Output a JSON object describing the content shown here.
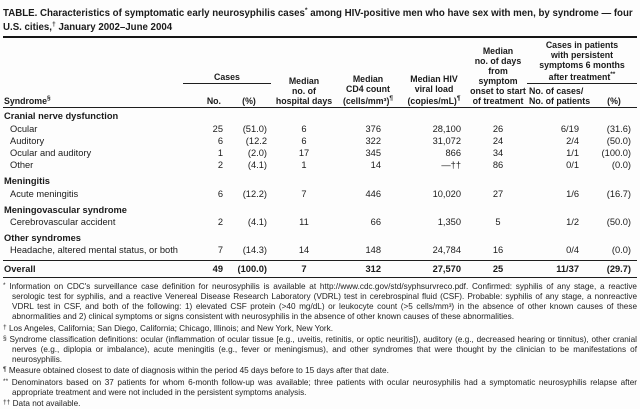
{
  "colors": {
    "background": "#fdfdfd",
    "text": "#1b1b1b",
    "rule": "#161616"
  },
  "title": {
    "part1": "TABLE. Characteristics of symptomatic early neurosyphilis cases",
    "sup1": "*",
    "part2": " among HIV-positive men who have sex with men, by syndrome — four U.S. cities,",
    "sup2": "†",
    "part3": " January 2002–June 2004"
  },
  "table": {
    "header": {
      "syndrome": "Syndrome",
      "syndrome_sup": "§",
      "cases_group": "Cases",
      "no": "No.",
      "pct": "(%)",
      "hospital_lines": [
        "Median",
        "no. of",
        "hospital days"
      ],
      "cd4_lines": [
        "Median",
        "CD4 count",
        "(cells/mm³)"
      ],
      "cd4_sup": "¶",
      "viral_lines": [
        "Median HIV",
        "viral load",
        "(copies/mL)"
      ],
      "viral_sup": "¶",
      "onset_lines": [
        "Median",
        "no. of days",
        "from symptom",
        "onset to start",
        "of treatment"
      ],
      "persistent_lines": [
        "Cases in patients",
        "with persistent",
        "symptoms 6 months",
        "after treatment"
      ],
      "persistent_sup": "**",
      "cases_patients_line1": "No. of cases/",
      "cases_patients_line2": "No. of patients",
      "persistent_pct": "(%)"
    },
    "rows": [
      {
        "type": "group",
        "label": "Cranial nerve dysfunction"
      },
      {
        "type": "item",
        "label": "Ocular",
        "no": "25",
        "pct": "(51.0)",
        "hospital_days": "6",
        "cd4": "376",
        "viral_load": "28,100",
        "onset_days": "26",
        "cases_patients": "6/19",
        "persistent_pct": "(31.6)"
      },
      {
        "type": "item",
        "label": "Auditory",
        "no": "6",
        "pct": "(12.2",
        "hospital_days": "6",
        "cd4": "322",
        "viral_load": "31,072",
        "onset_days": "24",
        "cases_patients": "2/4",
        "persistent_pct": "(50.0)"
      },
      {
        "type": "item",
        "label": "Ocular and auditory",
        "no": "1",
        "pct": "(2.0)",
        "hospital_days": "17",
        "cd4": "345",
        "viral_load": "866",
        "onset_days": "34",
        "cases_patients": "1/1",
        "persistent_pct": "(100.0)"
      },
      {
        "type": "item",
        "label": "Other",
        "no": "2",
        "pct": "(4.1)",
        "hospital_days": "1",
        "cd4": "14",
        "viral_load": "—††",
        "onset_days": "86",
        "cases_patients": "0/1",
        "persistent_pct": "(0.0)"
      },
      {
        "type": "group",
        "label": "Meningitis"
      },
      {
        "type": "item",
        "label": "Acute meningitis",
        "no": "6",
        "pct": "(12.2)",
        "hospital_days": "7",
        "cd4": "446",
        "viral_load": "10,020",
        "onset_days": "27",
        "cases_patients": "1/6",
        "persistent_pct": "(16.7)"
      },
      {
        "type": "group",
        "label": "Meningovascular syndrome"
      },
      {
        "type": "item",
        "label": "Cerebrovascular accident",
        "no": "2",
        "pct": "(4.1)",
        "hospital_days": "11",
        "cd4": "66",
        "viral_load": "1,350",
        "onset_days": "5",
        "cases_patients": "1/2",
        "persistent_pct": "(50.0)"
      },
      {
        "type": "group",
        "label": "Other syndromes"
      },
      {
        "type": "item",
        "label": "Headache, altered mental status, or both",
        "no": "7",
        "pct": "(14.3)",
        "hospital_days": "14",
        "cd4": "148",
        "viral_load": "24,784",
        "onset_days": "16",
        "cases_patients": "0/4",
        "persistent_pct": "(0.0)"
      },
      {
        "type": "overall",
        "label": "Overall",
        "no": "49",
        "pct": "(100.0)",
        "hospital_days": "7",
        "cd4": "312",
        "viral_load": "27,570",
        "onset_days": "25",
        "cases_patients": "11/37",
        "persistent_pct": "(29.7)"
      }
    ]
  },
  "footnotes": [
    {
      "marker": "*",
      "text": "Information on CDC's surveillance case definition for neurosyphilis is available at http://www.cdc.gov/std/syphsurvreco.pdf. Confirmed: syphilis of any stage, a reactive serologic test for syphilis, and a reactive Venereal Disease Research Laboratory (VDRL) test in cerebrospinal fluid (CSF). Probable: syphilis of any stage, a nonreactive VDRL test in CSF, and both of the following: 1) elevated CSF protein (>40 mg/dL) or leukocyte count (>5 cells/mm³) in the absence of other known causes of these abnormalities and 2) clinical symptoms or signs consistent with neurosyphilis in the absence of other known causes of these abnormalities."
    },
    {
      "marker": "†",
      "text": "Los Angeles, California; San Diego, California; Chicago, Illinois; and New York, New York."
    },
    {
      "marker": "§",
      "text": "Syndrome classification definitions: ocular (inflammation of ocular tissue [e.g., uveitis, retinitis, or optic neuritis]), auditory (e.g., decreased hearing or tinnitus), other cranial nerves (e.g., diplopia or imbalance), acute meningitis (e.g., fever or meningismus), and other syndromes that were thought by the clinician to be manifestations of neurosyphilis."
    },
    {
      "marker": "¶",
      "text": "Measure obtained closest to date of diagnosis within the period 45 days before to 15 days after that date."
    },
    {
      "marker": "**",
      "text": "Denominators based on 37 patients for whom 6-month follow-up was available; three patients with ocular neurosyphilis had a symptomatic neurosyphilis relapse after appropriate treatment and were not included in the persistent symptoms analysis."
    },
    {
      "marker": "††",
      "text": "Data not available."
    }
  ]
}
